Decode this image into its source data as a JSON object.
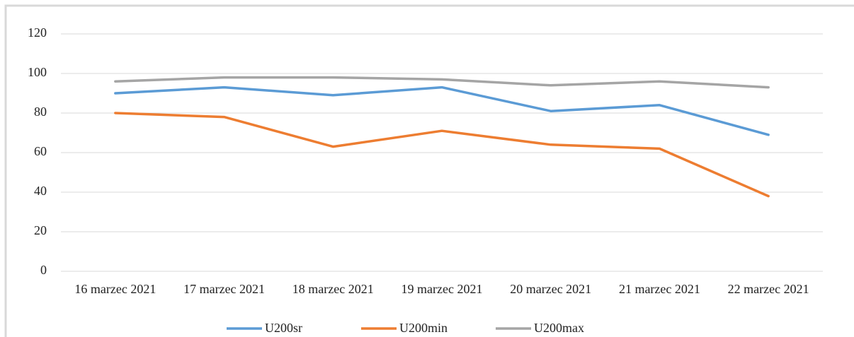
{
  "chart_data": {
    "type": "line",
    "categories": [
      "16 marzec 2021",
      "17 marzec 2021",
      "18 marzec 2021",
      "19 marzec 2021",
      "20 marzec 2021",
      "21 marzec 2021",
      "22 marzec 2021"
    ],
    "series": [
      {
        "name": "U200sr",
        "color": "#5b9bd5",
        "values": [
          90,
          93,
          89,
          93,
          81,
          84,
          69
        ]
      },
      {
        "name": "U200min",
        "color": "#ed7d31",
        "values": [
          80,
          78,
          63,
          71,
          64,
          62,
          38
        ]
      },
      {
        "name": "U200max",
        "color": "#a5a5a5",
        "values": [
          96,
          98,
          98,
          97,
          94,
          96,
          93
        ]
      }
    ],
    "ylim": [
      0,
      120
    ],
    "yticks": [
      0,
      20,
      40,
      60,
      80,
      100,
      120
    ],
    "grid": true,
    "legend": "bottom"
  }
}
